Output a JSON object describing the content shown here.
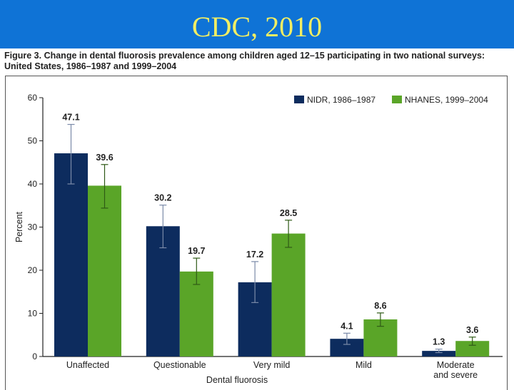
{
  "header": {
    "title": "CDC, 2010"
  },
  "figure": {
    "caption_line1": "Figure 3. Change in dental fluorosis prevalence among children aged 12–15 participating in two national surveys:",
    "caption_line2": "United States, 1986–1987 and 1999–2004"
  },
  "chart_data": {
    "type": "bar",
    "categories": [
      [
        "Unaffected"
      ],
      [
        "Questionable"
      ],
      [
        "Very mild"
      ],
      [
        "Mild"
      ],
      [
        "Moderate",
        "and severe"
      ]
    ],
    "series": [
      {
        "name": "NIDR, 1986–1987",
        "color": "#0d2c5e",
        "values": [
          47.1,
          30.2,
          17.2,
          4.1,
          1.3
        ],
        "labels": [
          "47.1",
          "30.2",
          "17.2",
          "4.1",
          "1.3"
        ],
        "error_bars": [
          [
            40.0,
            53.8
          ],
          [
            25.2,
            35.1
          ],
          [
            12.5,
            22.0
          ],
          [
            2.8,
            5.4
          ],
          [
            0.9,
            1.7
          ]
        ]
      },
      {
        "name": "NHANES, 1999–2004",
        "color": "#5aa528",
        "values": [
          39.6,
          19.7,
          28.5,
          8.6,
          3.6
        ],
        "labels": [
          "39.6",
          "19.7",
          "28.5",
          "8.6",
          "3.6"
        ],
        "error_bars": [
          [
            34.4,
            44.5
          ],
          [
            16.7,
            22.8
          ],
          [
            25.3,
            31.6
          ],
          [
            7.0,
            10.1
          ],
          [
            2.6,
            4.5
          ]
        ]
      }
    ],
    "ylim": [
      0,
      60
    ],
    "yticks": [
      "0",
      "10",
      "20",
      "30",
      "40",
      "50",
      "60"
    ],
    "ylabel": "Percent",
    "xlabel": "Dental fluorosis",
    "legend_position": "top-right",
    "grid": false
  }
}
